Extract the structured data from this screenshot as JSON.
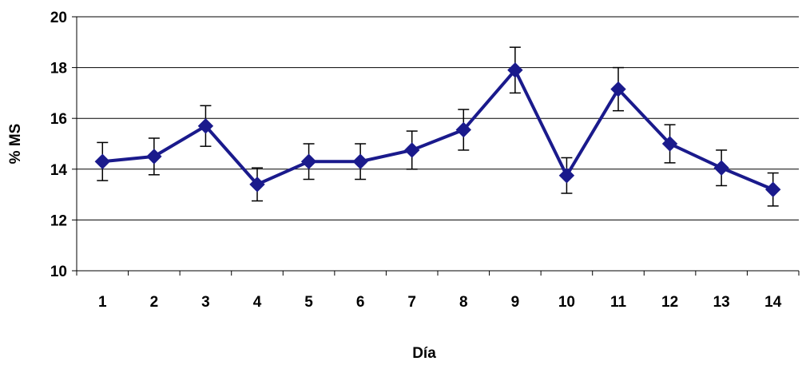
{
  "chart_data": {
    "type": "line",
    "xlabel": "Día",
    "ylabel": "% MS",
    "ylim": [
      10,
      20
    ],
    "yticks": [
      10,
      12,
      14,
      16,
      18,
      20
    ],
    "categories": [
      "1",
      "2",
      "3",
      "4",
      "5",
      "6",
      "7",
      "8",
      "9",
      "10",
      "11",
      "12",
      "13",
      "14"
    ],
    "series": [
      {
        "values": [
          14.3,
          14.5,
          15.7,
          13.4,
          14.3,
          14.3,
          14.75,
          15.55,
          17.9,
          13.75,
          17.15,
          15.0,
          14.05,
          13.2
        ],
        "error": [
          0.75,
          0.72,
          0.8,
          0.65,
          0.7,
          0.7,
          0.75,
          0.8,
          0.9,
          0.7,
          0.85,
          0.75,
          0.7,
          0.65
        ],
        "color": "#1a1a8c",
        "marker": "diamond"
      }
    ],
    "grid": "horizontal",
    "legend": "none",
    "error_bar_color": "#000000"
  }
}
